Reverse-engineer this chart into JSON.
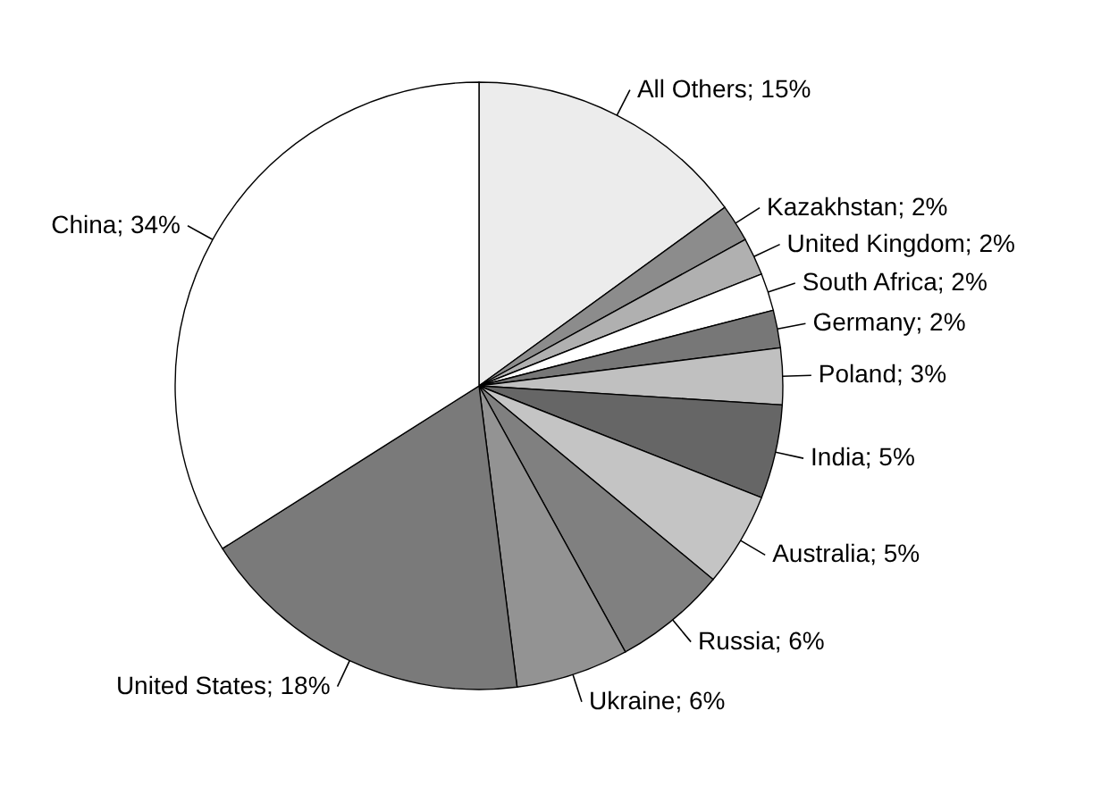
{
  "chart_data": {
    "type": "pie",
    "categories": [
      "All Others",
      "Kazakhstan",
      "United Kingdom",
      "South Africa",
      "Germany",
      "Poland",
      "India",
      "Australia",
      "Russia",
      "Ukraine",
      "United States",
      "China"
    ],
    "values": [
      15,
      2,
      2,
      2,
      2,
      3,
      5,
      5,
      6,
      6,
      18,
      34
    ],
    "value_labels": [
      "15%",
      "2%",
      "2%",
      "2%",
      "2%",
      "3%",
      "5%",
      "5%",
      "6%",
      "6%",
      "18%",
      "34%"
    ],
    "colors": [
      "#ececec",
      "#8c8c8c",
      "#b0b0b0",
      "#ffffff",
      "#777777",
      "#c0c0c0",
      "#666666",
      "#c4c4c4",
      "#808080",
      "#939393",
      "#7a7a7a",
      "#ffffff"
    ]
  }
}
